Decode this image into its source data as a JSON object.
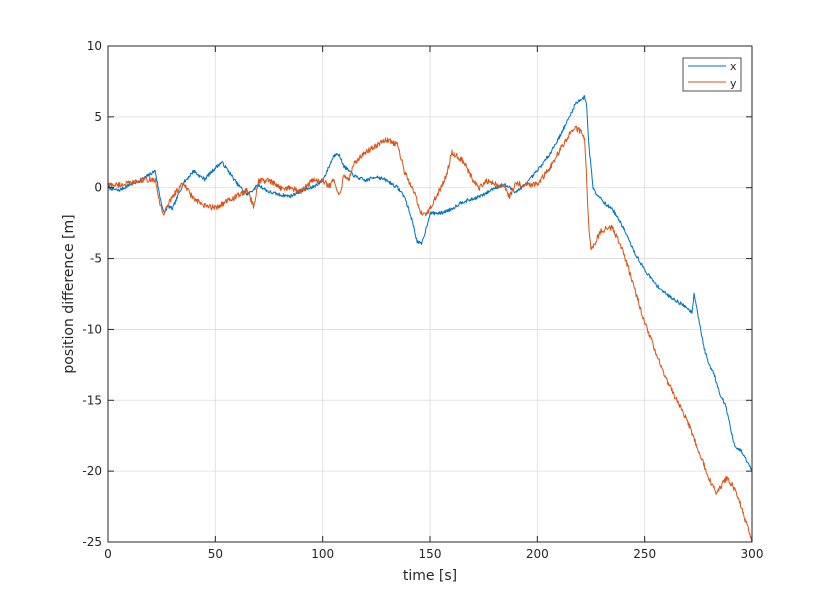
{
  "chart_data": {
    "type": "line",
    "title": "",
    "xlabel": "time [s]",
    "ylabel": "position difference [m]",
    "xlim": [
      0,
      300
    ],
    "ylim": [
      -25,
      10
    ],
    "xticks": [
      0,
      50,
      100,
      150,
      200,
      250,
      300
    ],
    "yticks": [
      -25,
      -20,
      -15,
      -10,
      -5,
      0,
      5,
      10
    ],
    "xtick_labels": [
      "0",
      "50",
      "100",
      "150",
      "200",
      "250",
      "300"
    ],
    "ytick_labels": [
      "-25",
      "-20",
      "-15",
      "-10",
      "-5",
      "0",
      "5",
      "10"
    ],
    "grid": true,
    "legend_position": "top-right",
    "series": [
      {
        "name": "x",
        "color": "#0072BD",
        "noise": 0.25,
        "points": [
          [
            0,
            0
          ],
          [
            5,
            -0.2
          ],
          [
            10,
            0.2
          ],
          [
            15,
            0.5
          ],
          [
            20,
            1.0
          ],
          [
            22,
            1.2
          ],
          [
            24,
            -0.5
          ],
          [
            26,
            -1.8
          ],
          [
            28,
            -1.3
          ],
          [
            30,
            -1.5
          ],
          [
            35,
            0.3
          ],
          [
            40,
            1.2
          ],
          [
            42,
            0.9
          ],
          [
            45,
            0.6
          ],
          [
            50,
            1.4
          ],
          [
            53,
            1.8
          ],
          [
            56,
            1.2
          ],
          [
            60,
            0.3
          ],
          [
            65,
            -0.5
          ],
          [
            70,
            0.2
          ],
          [
            75,
            -0.3
          ],
          [
            80,
            -0.5
          ],
          [
            85,
            -0.6
          ],
          [
            90,
            -0.2
          ],
          [
            95,
            0
          ],
          [
            100,
            0.5
          ],
          [
            103,
            1.5
          ],
          [
            105,
            2.2
          ],
          [
            107,
            2.5
          ],
          [
            110,
            1.5
          ],
          [
            115,
            0.8
          ],
          [
            120,
            0.5
          ],
          [
            125,
            0.8
          ],
          [
            130,
            0.5
          ],
          [
            135,
            0
          ],
          [
            138,
            -0.6
          ],
          [
            140,
            -1.5
          ],
          [
            142,
            -2.5
          ],
          [
            144,
            -3.8
          ],
          [
            146,
            -4.0
          ],
          [
            148,
            -3.0
          ],
          [
            150,
            -1.8
          ],
          [
            155,
            -1.8
          ],
          [
            160,
            -1.5
          ],
          [
            165,
            -1.0
          ],
          [
            170,
            -0.8
          ],
          [
            175,
            -0.5
          ],
          [
            180,
            0
          ],
          [
            185,
            0.2
          ],
          [
            190,
            -0.3
          ],
          [
            195,
            0.3
          ],
          [
            200,
            1.2
          ],
          [
            205,
            2.2
          ],
          [
            210,
            3.5
          ],
          [
            215,
            5.0
          ],
          [
            218,
            6.0
          ],
          [
            220,
            6.2
          ],
          [
            222,
            6.4
          ],
          [
            223,
            5.8
          ],
          [
            224,
            3.0
          ],
          [
            226,
            0
          ],
          [
            228,
            -0.5
          ],
          [
            230,
            -0.8
          ],
          [
            232,
            -1.2
          ],
          [
            235,
            -1.5
          ],
          [
            240,
            -2.8
          ],
          [
            245,
            -4.5
          ],
          [
            250,
            -5.8
          ],
          [
            255,
            -6.8
          ],
          [
            260,
            -7.5
          ],
          [
            265,
            -8.0
          ],
          [
            270,
            -8.5
          ],
          [
            272,
            -8.8
          ],
          [
            273,
            -7.5
          ],
          [
            274,
            -8.2
          ],
          [
            276,
            -10.0
          ],
          [
            278,
            -11.5
          ],
          [
            280,
            -12.5
          ],
          [
            282,
            -13.0
          ],
          [
            285,
            -14.5
          ],
          [
            288,
            -15.5
          ],
          [
            290,
            -17.0
          ],
          [
            292,
            -18.3
          ],
          [
            295,
            -18.6
          ],
          [
            298,
            -19.4
          ],
          [
            300,
            -20.0
          ]
        ]
      },
      {
        "name": "y",
        "color": "#D95319",
        "noise": 0.4,
        "points": [
          [
            0,
            0.2
          ],
          [
            5,
            0.2
          ],
          [
            10,
            0.3
          ],
          [
            15,
            0.5
          ],
          [
            20,
            0.6
          ],
          [
            22,
            0.5
          ],
          [
            24,
            -1.0
          ],
          [
            26,
            -1.9
          ],
          [
            28,
            -1.2
          ],
          [
            30,
            -0.6
          ],
          [
            35,
            0.3
          ],
          [
            40,
            -0.8
          ],
          [
            45,
            -1.3
          ],
          [
            50,
            -1.4
          ],
          [
            55,
            -1.0
          ],
          [
            60,
            -0.6
          ],
          [
            65,
            -0.2
          ],
          [
            68,
            -1.4
          ],
          [
            70,
            0.5
          ],
          [
            75,
            0.5
          ],
          [
            80,
            0
          ],
          [
            85,
            0
          ],
          [
            90,
            -0.3
          ],
          [
            95,
            0.5
          ],
          [
            100,
            0.5
          ],
          [
            103,
            0.1
          ],
          [
            105,
            0.5
          ],
          [
            108,
            -0.5
          ],
          [
            110,
            1.0
          ],
          [
            112,
            0.5
          ],
          [
            115,
            1.8
          ],
          [
            120,
            2.5
          ],
          [
            125,
            3.0
          ],
          [
            130,
            3.4
          ],
          [
            135,
            3.0
          ],
          [
            138,
            1.2
          ],
          [
            140,
            0.5
          ],
          [
            143,
            -0.5
          ],
          [
            146,
            -1.8
          ],
          [
            148,
            -1.9
          ],
          [
            150,
            -1.5
          ],
          [
            155,
            0
          ],
          [
            158,
            1.0
          ],
          [
            160,
            2.5
          ],
          [
            163,
            2.2
          ],
          [
            166,
            1.8
          ],
          [
            170,
            0.5
          ],
          [
            173,
            0
          ],
          [
            176,
            0.5
          ],
          [
            180,
            0.3
          ],
          [
            185,
            0
          ],
          [
            187,
            -0.6
          ],
          [
            190,
            0.3
          ],
          [
            195,
            0.2
          ],
          [
            200,
            0.3
          ],
          [
            205,
            1.2
          ],
          [
            210,
            2.5
          ],
          [
            215,
            3.8
          ],
          [
            218,
            4.2
          ],
          [
            220,
            4.0
          ],
          [
            222,
            3.5
          ],
          [
            223,
            0.5
          ],
          [
            224,
            -3.0
          ],
          [
            225,
            -4.5
          ],
          [
            228,
            -3.5
          ],
          [
            230,
            -3.0
          ],
          [
            235,
            -2.8
          ],
          [
            240,
            -4.5
          ],
          [
            245,
            -7.0
          ],
          [
            250,
            -9.5
          ],
          [
            255,
            -11.5
          ],
          [
            260,
            -13.5
          ],
          [
            265,
            -15.0
          ],
          [
            270,
            -16.5
          ],
          [
            275,
            -18.5
          ],
          [
            280,
            -20.5
          ],
          [
            283,
            -21.5
          ],
          [
            286,
            -21.0
          ],
          [
            288,
            -20.5
          ],
          [
            291,
            -21.0
          ],
          [
            295,
            -22.5
          ],
          [
            298,
            -24.0
          ],
          [
            300,
            -25.0
          ]
        ]
      }
    ]
  }
}
